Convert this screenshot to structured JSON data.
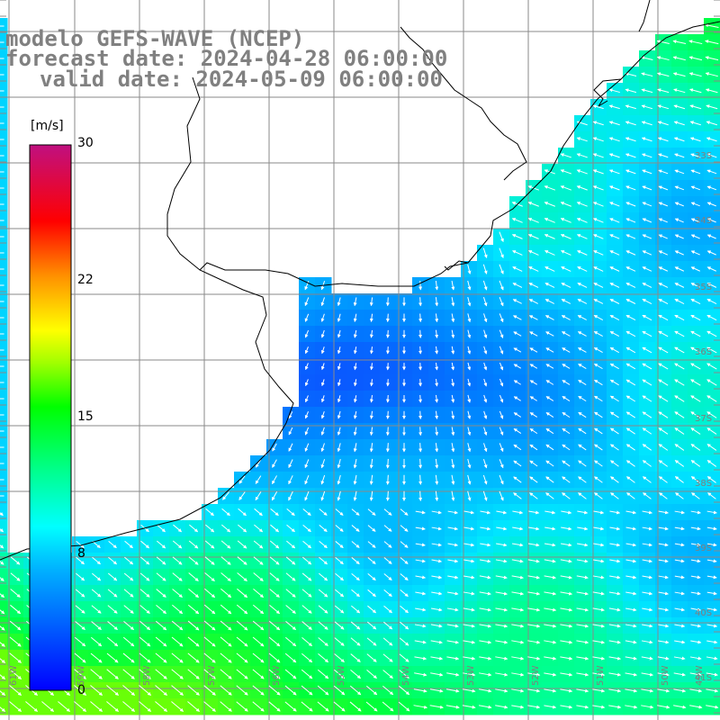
{
  "title": {
    "line1": "modelo GEFS-WAVE (NCEP)",
    "line2": "forecast date: 2024-04-28 06:00:00",
    "line3": "valid date: 2024-05-09 06:00:00"
  },
  "colorbar": {
    "unit": "[m/s]",
    "ticks": [
      "30",
      "22",
      "15",
      "8",
      "0"
    ],
    "colors": [
      "#0000ff",
      "#00a0ff",
      "#00ffff",
      "#00ff80",
      "#00ff00",
      "#80ff00",
      "#ffff00",
      "#ffa000",
      "#ff0000",
      "#e00070",
      "#c00080"
    ]
  },
  "grid": {
    "lon_labels": [
      "61W",
      "59W",
      "58W",
      "57W",
      "56W",
      "55W",
      "54W",
      "53W",
      "52W",
      "51W",
      "50W",
      "49W"
    ],
    "lat_labels": [
      "33S",
      "34S",
      "35S",
      "36S",
      "37S",
      "38S",
      "39S",
      "40S",
      "41S"
    ]
  },
  "colors": {
    "ocean_low": "#1040ff",
    "ocean_mid": "#00b0ff",
    "ocean_high": "#00ff80",
    "land": "#ffffff",
    "coast": "#000000",
    "grid": "#808080"
  }
}
